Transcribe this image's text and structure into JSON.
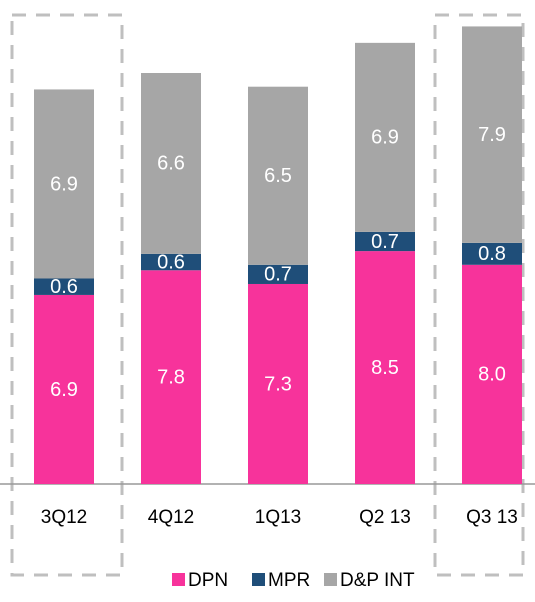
{
  "chart_data": {
    "type": "bar",
    "stacked": true,
    "categories": [
      "3Q12",
      "4Q12",
      "1Q13",
      "Q2 13",
      "Q3 13"
    ],
    "series": [
      {
        "name": "DPN",
        "color": "#f7339b",
        "values": [
          6.9,
          7.8,
          7.3,
          8.5,
          8.0
        ],
        "value_labels": [
          "6.9",
          "7.8",
          "7.3",
          "8.5",
          "8.0"
        ]
      },
      {
        "name": "MPR",
        "color": "#1f4e79",
        "values": [
          0.6,
          0.6,
          0.7,
          0.7,
          0.8
        ],
        "value_labels": [
          "0.6",
          "0.6",
          "0.7",
          "0.7",
          "0.8"
        ]
      },
      {
        "name": "D&P INT",
        "color": "#a6a6a6",
        "values": [
          6.9,
          6.6,
          6.5,
          6.9,
          7.9
        ],
        "value_labels": [
          "6.9",
          "6.6",
          "6.5",
          "6.9",
          "7.9"
        ]
      }
    ]
  }
}
